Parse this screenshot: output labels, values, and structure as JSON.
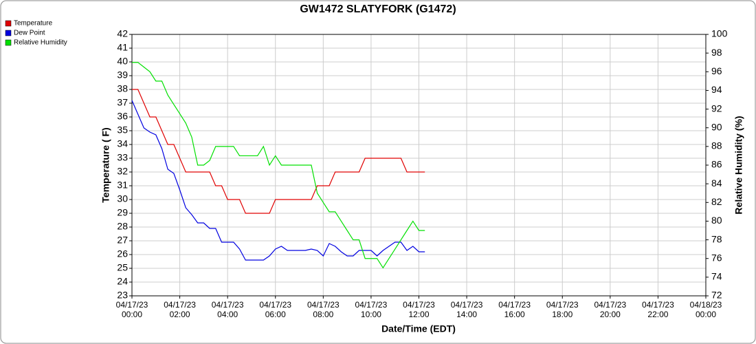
{
  "chart_data": {
    "type": "line",
    "title": "GW1472 SLATYFORK (G1472)",
    "x_label": "Date/Time (EDT)",
    "y_label": "Temperature ( F)",
    "y2_label": "Relative Humidity (%)",
    "grid": true,
    "legend": "top-left",
    "x": [
      0,
      0.25,
      0.5,
      0.75,
      1,
      1.25,
      1.5,
      1.75,
      2,
      2.25,
      2.5,
      2.75,
      3,
      3.25,
      3.5,
      3.75,
      4,
      4.25,
      4.5,
      4.75,
      5,
      5.25,
      5.5,
      5.75,
      6,
      6.25,
      6.5,
      6.75,
      7,
      7.25,
      7.5,
      7.75,
      8,
      8.25,
      8.5,
      8.75,
      9,
      9.25,
      9.5,
      9.75,
      10,
      10.25,
      10.5,
      10.75,
      11,
      11.25,
      11.5,
      11.75,
      12,
      12.25
    ],
    "series": [
      {
        "name": "Temperature",
        "color": "#e00000",
        "values": [
          38,
          38,
          37,
          36,
          36,
          35,
          34,
          34,
          33,
          32,
          32,
          32,
          32,
          32,
          31,
          31,
          30,
          30,
          30,
          29,
          29,
          29,
          29,
          29,
          30,
          30,
          30,
          30,
          30,
          30,
          30,
          31,
          31,
          31,
          32,
          32,
          32,
          32,
          32,
          33,
          33,
          33,
          33,
          33,
          33,
          33,
          32,
          32,
          32,
          32
        ]
      },
      {
        "name": "Dew Point",
        "color": "#0000e0",
        "values": [
          37.2,
          36.2,
          35.2,
          34.9,
          34.7,
          33.7,
          32.2,
          31.9,
          30.7,
          29.4,
          28.9,
          28.3,
          28.3,
          27.9,
          27.9,
          26.9,
          26.9,
          26.9,
          26.4,
          25.6,
          25.6,
          25.6,
          25.6,
          25.9,
          26.4,
          26.6,
          26.3,
          26.3,
          26.3,
          26.3,
          26.4,
          26.3,
          25.9,
          26.8,
          26.6,
          26.2,
          25.9,
          25.9,
          26.3,
          26.3,
          26.3,
          25.9,
          26.3,
          26.6,
          26.9,
          26.9,
          26.3,
          26.6,
          26.2,
          26.2
        ]
      },
      {
        "name": "Relative Humidity",
        "color": "#00e000",
        "axis": "y2",
        "values": [
          97,
          97,
          96.5,
          96,
          95,
          95,
          93.5,
          92.5,
          91.5,
          90.5,
          89,
          86,
          86,
          86.5,
          88,
          88,
          88,
          88,
          87,
          87,
          87,
          87,
          88,
          86,
          87,
          86,
          86,
          86,
          86,
          86,
          86,
          83,
          82,
          81,
          81,
          80,
          79,
          78,
          78,
          76,
          76,
          76,
          75,
          76,
          77,
          78,
          79,
          80,
          79,
          79
        ]
      }
    ],
    "xlim": [
      0,
      24
    ],
    "xticks": [
      {
        "value": 0,
        "label": "04/17/23\n00:00"
      },
      {
        "value": 2,
        "label": "04/17/23\n02:00"
      },
      {
        "value": 4,
        "label": "04/17/23\n04:00"
      },
      {
        "value": 6,
        "label": "04/17/23\n06:00"
      },
      {
        "value": 8,
        "label": "04/17/23\n08:00"
      },
      {
        "value": 10,
        "label": "04/17/23\n10:00"
      },
      {
        "value": 12,
        "label": "04/17/23\n12:00"
      },
      {
        "value": 14,
        "label": "04/17/23\n14:00"
      },
      {
        "value": 16,
        "label": "04/17/23\n16:00"
      },
      {
        "value": 18,
        "label": "04/17/23\n18:00"
      },
      {
        "value": 20,
        "label": "04/17/23\n20:00"
      },
      {
        "value": 22,
        "label": "04/17/23\n22:00"
      },
      {
        "value": 24,
        "label": "04/18/23\n00:00"
      }
    ],
    "ylim": [
      23,
      42
    ],
    "yticks": [
      23,
      24,
      25,
      26,
      27,
      28,
      29,
      30,
      31,
      32,
      33,
      34,
      35,
      36,
      37,
      38,
      39,
      40,
      41,
      42
    ],
    "y2lim": [
      72,
      100
    ],
    "y2ticks": [
      72,
      74,
      76,
      78,
      80,
      82,
      84,
      86,
      88,
      90,
      92,
      94,
      96,
      98,
      100
    ]
  }
}
